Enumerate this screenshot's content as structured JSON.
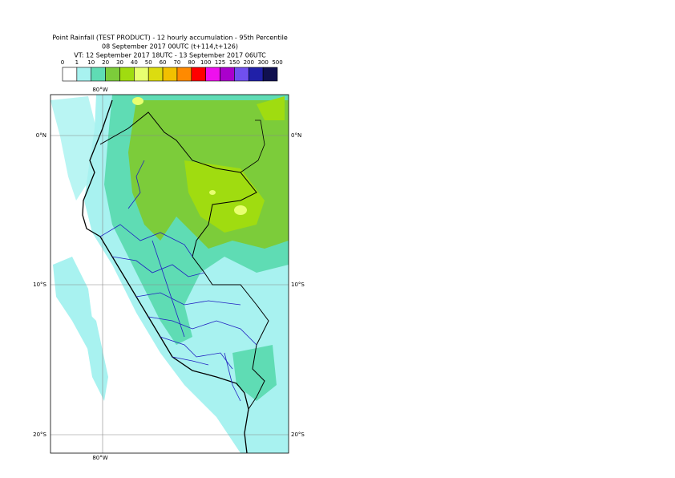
{
  "header": {
    "title": "Point Rainfall (TEST PRODUCT) - 12 hourly accumulation - 95th Percentile",
    "base_time": "08 September 2017 00UTC (t+114,t+126)",
    "valid_time": "VT: 12 September 2017 18UTC - 13 September 2017 06UTC"
  },
  "legend": {
    "labels": [
      0,
      1,
      10,
      20,
      30,
      40,
      50,
      60,
      70,
      80,
      100,
      125,
      150,
      200,
      300,
      500
    ],
    "colors": [
      "#ffffff",
      "#a8f2f0",
      "#5fdcb4",
      "#7ccc3a",
      "#a0dc10",
      "#e8ff70",
      "#dcdc10",
      "#f2c000",
      "#ff8a00",
      "#ff0000",
      "#ee10ee",
      "#aa00cc",
      "#7050ee",
      "#2020a8",
      "#101050"
    ]
  },
  "map": {
    "lon_labels": [
      "80°W",
      "80°W"
    ],
    "lat_labels": [
      "0°N",
      "10°S",
      "20°S",
      "0°N",
      "10°S",
      "20°S"
    ]
  }
}
